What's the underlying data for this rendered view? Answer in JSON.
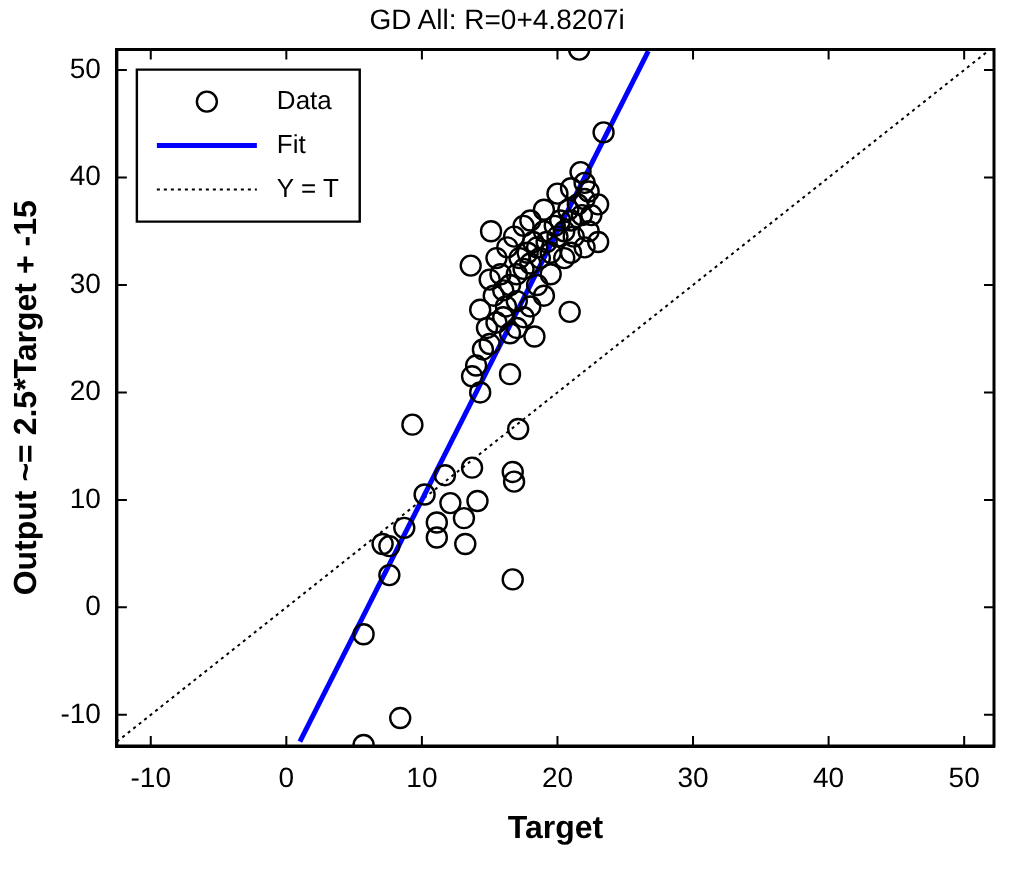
{
  "chart_data": {
    "type": "scatter",
    "title": "GD All: R=0+4.8207i",
    "xlabel": "Target",
    "ylabel": "Output ~= 2.5*Target + -15",
    "xlim": [
      -12.5,
      52.2
    ],
    "ylim": [
      -12.9,
      51.9
    ],
    "xticks": [
      -10,
      0,
      10,
      20,
      30,
      40,
      50
    ],
    "yticks": [
      -10,
      0,
      10,
      20,
      30,
      40,
      50
    ],
    "grid": false,
    "legend": "top left",
    "series": [
      {
        "name": "Data",
        "color": "#000000",
        "marker": "circle",
        "x": [
          21.6,
          23.4,
          21.7,
          22.3,
          15.1,
          13.6,
          14.3,
          20.9,
          18.3,
          13.7,
          16.5,
          14.3,
          9.3,
          17.1,
          13.7,
          16.7,
          16.8,
          11.7,
          10.2,
          14.1,
          12.1,
          13.1,
          11.1,
          11.1,
          13.2,
          8.7,
          7.1,
          7.6,
          7.6,
          16.7,
          5.7,
          8.4,
          5.7,
          16.0,
          16.5,
          17.0,
          17.2,
          17.5,
          17.8,
          18.0,
          18.2,
          18.5,
          18.7,
          19.0,
          19.2,
          19.5,
          19.8,
          20.0,
          20.2,
          20.5,
          20.8,
          21.0,
          21.2,
          21.5,
          21.8,
          22.0,
          22.3,
          22.5,
          16.3,
          16.8,
          17.5,
          18.0,
          15.8,
          15.5,
          16.2,
          17.0,
          18.5,
          19.5,
          20.5,
          21.0,
          22.0,
          15.0,
          15.3,
          14.8,
          15.5,
          16.0,
          14.5,
          14.0,
          15.0,
          16.5,
          17.5,
          19.0,
          20.0,
          21.0,
          22.0,
          23.0,
          23.0,
          19.0,
          18.0,
          17.0
        ],
        "values": [
          51.9,
          44.2,
          40.5,
          38.7,
          35.0,
          31.8,
          27.7,
          27.5,
          25.2,
          21.5,
          21.7,
          20.0,
          17.0,
          16.6,
          13.0,
          12.6,
          11.7,
          12.3,
          10.5,
          9.9,
          9.7,
          8.3,
          7.9,
          6.5,
          5.9,
          7.4,
          5.9,
          5.7,
          3.0,
          2.6,
          -2.5,
          -10.3,
          -12.8,
          29.5,
          30.0,
          31.0,
          32.5,
          31.5,
          33.0,
          32.0,
          34.0,
          33.5,
          32.5,
          35.0,
          34.0,
          33.0,
          35.5,
          34.5,
          36.0,
          35.0,
          37.0,
          36.0,
          34.5,
          37.5,
          36.5,
          38.0,
          35.0,
          36.5,
          33.5,
          34.5,
          35.5,
          36.0,
          31.0,
          32.5,
          28.0,
          28.5,
          30.0,
          31.0,
          32.5,
          33.0,
          33.5,
          30.5,
          29.0,
          26.0,
          26.5,
          27.0,
          24.0,
          22.5,
          24.5,
          25.5,
          27.0,
          37.0,
          38.5,
          39.0,
          39.5,
          34.0,
          37.5,
          29.0,
          28.0,
          26.0
        ]
      },
      {
        "name": "Fit",
        "color": "#0000ff",
        "type": "line",
        "marker": "none",
        "line_style": "solid",
        "x": [
          1,
          26.7
        ],
        "values": [
          -12.5,
          51.75
        ]
      },
      {
        "name": "Y = T",
        "color": "#000000",
        "type": "line",
        "marker": "none",
        "line_style": "dotted",
        "x": [
          -12.5,
          51.9
        ],
        "values": [
          -12.5,
          51.9
        ]
      }
    ]
  }
}
